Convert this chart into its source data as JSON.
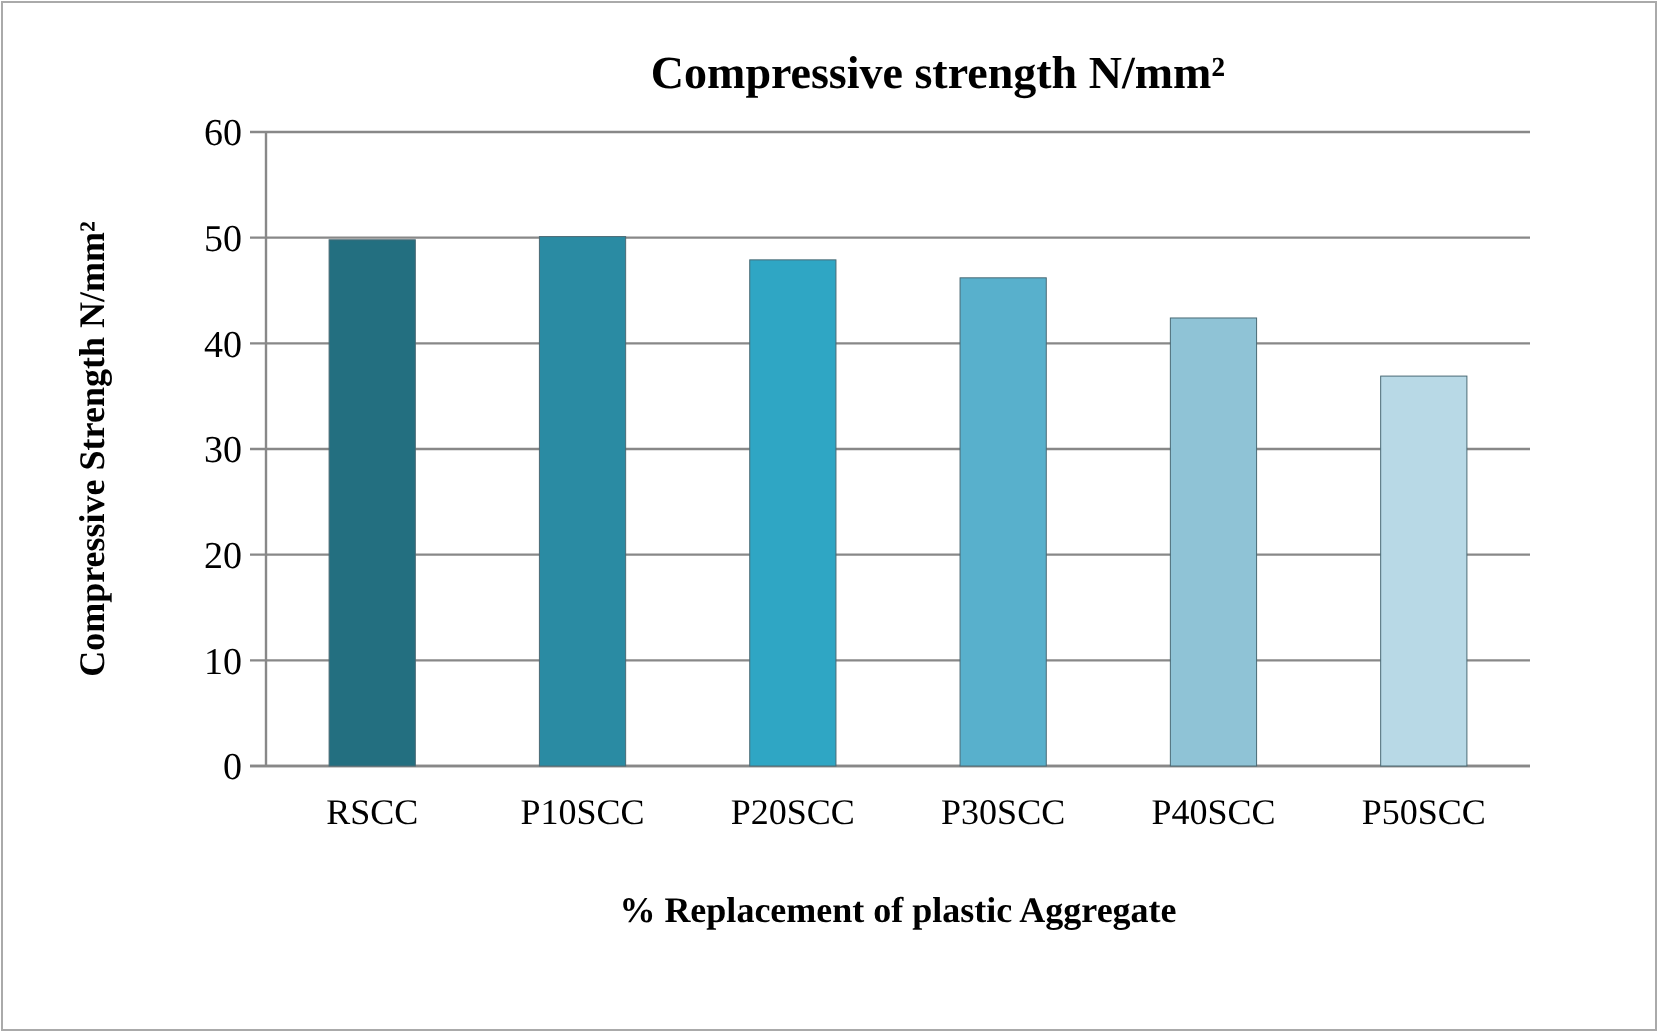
{
  "chart_data": {
    "type": "bar",
    "title": "Compressive strength N/mm²",
    "xlabel": "% Replacement of plastic Aggregate",
    "ylabel": "Compressive Strength N/mm²",
    "categories": [
      "RSCC",
      "P10SCC",
      "P20SCC",
      "P30SCC",
      "P40SCC",
      "P50SCC"
    ],
    "values": [
      49.8,
      50.1,
      47.9,
      46.2,
      42.4,
      36.9
    ],
    "colors": [
      "#236f80",
      "#2a8ba3",
      "#2fa6c4",
      "#58b0cc",
      "#8fc3d6",
      "#b8d9e6"
    ],
    "ylim": [
      0,
      60
    ],
    "yticks": [
      0,
      10,
      20,
      30,
      40,
      50,
      60
    ],
    "grid": "y"
  }
}
